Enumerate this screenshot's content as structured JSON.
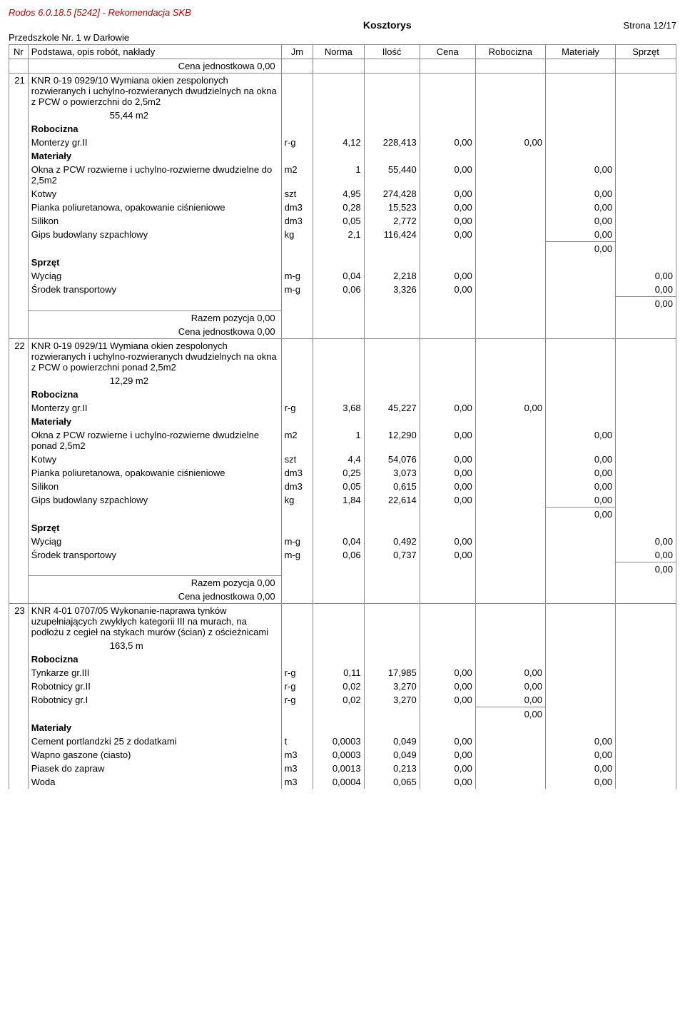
{
  "header": {
    "app_line": "Rodos 6.0.18.5 [5242] - Rekomendacja SKB",
    "title": "Kosztorys",
    "page": "Strona 12/17",
    "subtitle": "Przedszkole Nr. 1 w Darłowie"
  },
  "columns": {
    "nr": "Nr",
    "desc": "Podstawa, opis robót, nakłady",
    "jm": "Jm",
    "norma": "Norma",
    "ilosc": "Ilość",
    "cena": "Cena",
    "rob": "Robocizna",
    "mat": "Materiały",
    "spr": "Sprzęt"
  },
  "labels": {
    "cena_jedn": "Cena jednostkowa  0,00",
    "razem_poz": "Razem pozycja  0,00",
    "robocizna": "Robocizna",
    "materialy": "Materiały",
    "sprzet": "Sprzęt"
  },
  "items": [
    {
      "nr": "21",
      "desc": "KNR 0-19 0929/10  Wymiana okien zespolonych rozwieranych i uchylno-rozwieranych dwudzielnych na okna z PCW o powierzchni do 2,5m2",
      "qty": "55,44  m2",
      "robocizna": [
        {
          "name": "Monterzy gr.II",
          "jm": "r-g",
          "norma": "4,12",
          "ilosc": "228,413",
          "cena": "0,00",
          "rob": "0,00"
        }
      ],
      "materialy": [
        {
          "name": "Okna z PCW rozwierne i uchylno-rozwierne dwudzielne do 2,5m2",
          "jm": "m2",
          "norma": "1",
          "ilosc": "55,440",
          "cena": "0,00",
          "mat": "0,00"
        },
        {
          "name": "Kotwy",
          "jm": "szt",
          "norma": "4,95",
          "ilosc": "274,428",
          "cena": "0,00",
          "mat": "0,00"
        },
        {
          "name": "Pianka poliuretanowa, opakowanie ciśnieniowe",
          "jm": "dm3",
          "norma": "0,28",
          "ilosc": "15,523",
          "cena": "0,00",
          "mat": "0,00"
        },
        {
          "name": "Silikon",
          "jm": "dm3",
          "norma": "0,05",
          "ilosc": "2,772",
          "cena": "0,00",
          "mat": "0,00"
        },
        {
          "name": "Gips budowlany szpachlowy",
          "jm": "kg",
          "norma": "2,1",
          "ilosc": "116,424",
          "cena": "0,00",
          "mat": "0,00"
        }
      ],
      "mat_sum": "0,00",
      "sprzet": [
        {
          "name": "Wyciąg",
          "jm": "m-g",
          "norma": "0,04",
          "ilosc": "2,218",
          "cena": "0,00",
          "spr": "0,00"
        },
        {
          "name": "Środek transportowy",
          "jm": "m-g",
          "norma": "0,06",
          "ilosc": "3,326",
          "cena": "0,00",
          "spr": "0,00"
        }
      ],
      "spr_sum": "0,00"
    },
    {
      "nr": "22",
      "desc": "KNR 0-19 0929/11  Wymiana okien zespolonych rozwieranych i uchylno-rozwieranych dwudzielnych na okna z PCW o powierzchni ponad 2,5m2",
      "qty": "12,29  m2",
      "robocizna": [
        {
          "name": "Monterzy gr.II",
          "jm": "r-g",
          "norma": "3,68",
          "ilosc": "45,227",
          "cena": "0,00",
          "rob": "0,00"
        }
      ],
      "materialy": [
        {
          "name": "Okna z PCW rozwierne i uchylno-rozwierne dwudzielne ponad 2,5m2",
          "jm": "m2",
          "norma": "1",
          "ilosc": "12,290",
          "cena": "0,00",
          "mat": "0,00"
        },
        {
          "name": "Kotwy",
          "jm": "szt",
          "norma": "4,4",
          "ilosc": "54,076",
          "cena": "0,00",
          "mat": "0,00"
        },
        {
          "name": "Pianka poliuretanowa, opakowanie ciśnieniowe",
          "jm": "dm3",
          "norma": "0,25",
          "ilosc": "3,073",
          "cena": "0,00",
          "mat": "0,00"
        },
        {
          "name": "Silikon",
          "jm": "dm3",
          "norma": "0,05",
          "ilosc": "0,615",
          "cena": "0,00",
          "mat": "0,00"
        },
        {
          "name": "Gips budowlany szpachlowy",
          "jm": "kg",
          "norma": "1,84",
          "ilosc": "22,614",
          "cena": "0,00",
          "mat": "0,00"
        }
      ],
      "mat_sum": "0,00",
      "sprzet": [
        {
          "name": "Wyciąg",
          "jm": "m-g",
          "norma": "0,04",
          "ilosc": "0,492",
          "cena": "0,00",
          "spr": "0,00"
        },
        {
          "name": "Środek transportowy",
          "jm": "m-g",
          "norma": "0,06",
          "ilosc": "0,737",
          "cena": "0,00",
          "spr": "0,00"
        }
      ],
      "spr_sum": "0,00"
    },
    {
      "nr": "23",
      "desc": "KNR 4-01 0707/05  Wykonanie-naprawa tynków uzupełniających zwykłych kategorii III na murach, na podłożu z cegieł na stykach murów (ścian) z ościeżnicami",
      "qty": "163,5  m",
      "robocizna": [
        {
          "name": "Tynkarze gr.III",
          "jm": "r-g",
          "norma": "0,11",
          "ilosc": "17,985",
          "cena": "0,00",
          "rob": "0,00"
        },
        {
          "name": "Robotnicy gr.II",
          "jm": "r-g",
          "norma": "0,02",
          "ilosc": "3,270",
          "cena": "0,00",
          "rob": "0,00"
        },
        {
          "name": "Robotnicy gr.I",
          "jm": "r-g",
          "norma": "0,02",
          "ilosc": "3,270",
          "cena": "0,00",
          "rob": "0,00"
        }
      ],
      "rob_sum": "0,00",
      "materialy": [
        {
          "name": "Cement portlandzki 25 z dodatkami",
          "jm": "t",
          "norma": "0,0003",
          "ilosc": "0,049",
          "cena": "0,00",
          "mat": "0,00"
        },
        {
          "name": "Wapno gaszone (ciasto)",
          "jm": "m3",
          "norma": "0,0003",
          "ilosc": "0,049",
          "cena": "0,00",
          "mat": "0,00"
        },
        {
          "name": "Piasek do zapraw",
          "jm": "m3",
          "norma": "0,0013",
          "ilosc": "0,213",
          "cena": "0,00",
          "mat": "0,00"
        },
        {
          "name": "Woda",
          "jm": "m3",
          "norma": "0,0004",
          "ilosc": "0,065",
          "cena": "0,00",
          "mat": "0,00"
        }
      ]
    }
  ]
}
